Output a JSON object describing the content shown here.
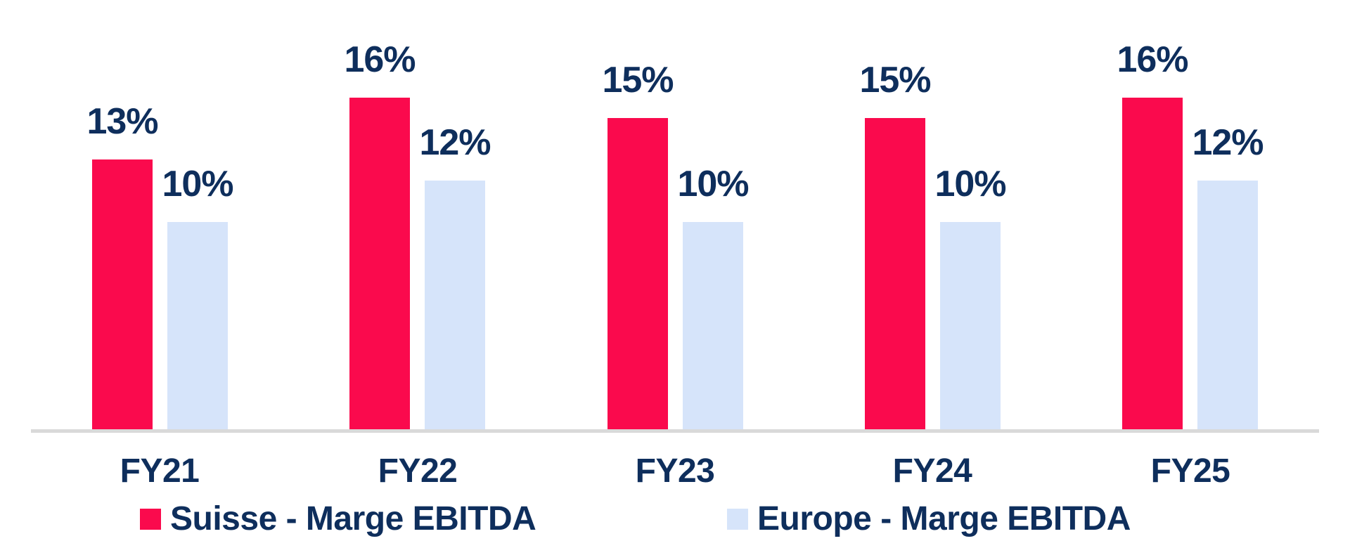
{
  "chart_data": {
    "type": "bar",
    "categories": [
      "FY21",
      "FY22",
      "FY23",
      "FY24",
      "FY25"
    ],
    "series": [
      {
        "name": "Suisse - Marge EBITDA",
        "color": "#FA0A4D",
        "values": [
          13,
          16,
          15,
          15,
          16
        ],
        "value_labels": [
          "13%",
          "16%",
          "15%",
          "15%",
          "16%"
        ]
      },
      {
        "name": "Europe - Marge EBITDA",
        "color": "#D6E4FA",
        "values": [
          10,
          12,
          10,
          10,
          12
        ],
        "value_labels": [
          "10%",
          "12%",
          "10%",
          "10%",
          "12%"
        ]
      }
    ],
    "title": "",
    "xlabel": "",
    "ylabel": "",
    "ylim": [
      0,
      20
    ],
    "grid": false,
    "y_axis_visible": false,
    "data_labels": "above-bars",
    "legend_position": "bottom",
    "text_color": "#0E2E5C",
    "axis_line_color": "#D9D9D9"
  }
}
